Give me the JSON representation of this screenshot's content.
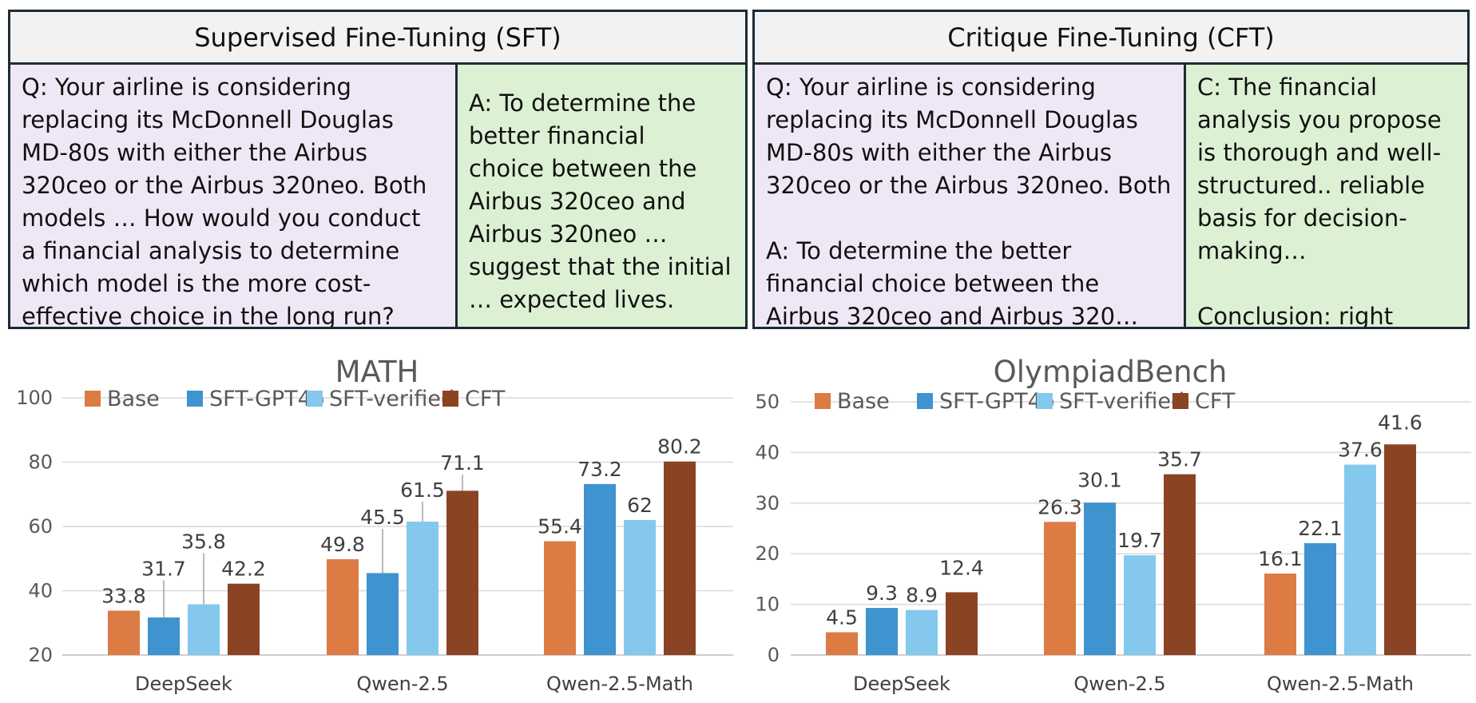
{
  "sft_panel": {
    "title": "Supervised Fine-Tuning (SFT)",
    "question_lines": [
      "Q: Your airline is considering",
      "replacing its McDonnell Douglas",
      "MD-80s with either the Airbus",
      "320ceo or the Airbus 320neo. Both",
      "models …  How would you conduct",
      "a financial analysis to determine",
      "which model is the more cost-",
      "effective choice in the long run?"
    ],
    "answer_lines": [
      "A: To determine the",
      "better financial",
      "choice between the",
      "Airbus 320ceo and",
      "Airbus 320neo …",
      "suggest that the initial",
      "… expected lives."
    ]
  },
  "cft_panel": {
    "title": "Critique Fine-Tuning (CFT)",
    "question_lines": [
      "Q: Your airline is considering",
      "replacing its McDonnell Douglas",
      "MD-80s with either the Airbus",
      "320ceo or the Airbus 320neo. Both"
    ],
    "answer_lines": [
      "A: To determine the better",
      "financial choice between the",
      "Airbus 320ceo and Airbus 320…"
    ],
    "critique_lines": [
      "C: The financial",
      "analysis you propose",
      "is thorough and well-",
      "structured.. reliable",
      "basis for decision-",
      "making…"
    ],
    "conclusion": "Conclusion: right"
  },
  "colors": {
    "Base": "#dd7b45",
    "SFT-GPT4o": "#3f93cf",
    "SFT-verified": "#84c8ee",
    "CFT": "#8b4423"
  },
  "chart_data": [
    {
      "type": "bar",
      "title": "MATH",
      "categories": [
        "DeepSeek",
        "Qwen-2.5",
        "Qwen-2.5-Math"
      ],
      "series": [
        {
          "name": "Base",
          "values": [
            33.8,
            49.8,
            55.4
          ]
        },
        {
          "name": "SFT-GPT4o",
          "values": [
            31.7,
            45.5,
            73.2
          ]
        },
        {
          "name": "SFT-verified",
          "values": [
            35.8,
            61.5,
            62
          ]
        },
        {
          "name": "CFT",
          "values": [
            42.2,
            71.1,
            80.2
          ]
        }
      ],
      "ylim": [
        20,
        100
      ],
      "yticks": [
        20,
        40,
        60,
        80,
        100
      ],
      "grid": true,
      "legend": "top"
    },
    {
      "type": "bar",
      "title": "OlympiadBench",
      "categories": [
        "DeepSeek",
        "Qwen-2.5",
        "Qwen-2.5-Math"
      ],
      "series": [
        {
          "name": "Base",
          "values": [
            4.5,
            26.3,
            16.1
          ]
        },
        {
          "name": "SFT-GPT4o",
          "values": [
            9.3,
            30.1,
            22.1
          ]
        },
        {
          "name": "SFT-verified",
          "values": [
            8.9,
            19.7,
            37.6
          ]
        },
        {
          "name": "CFT",
          "values": [
            12.4,
            35.7,
            41.6
          ]
        }
      ],
      "ylim": [
        0,
        50
      ],
      "yticks": [
        0,
        10,
        20,
        30,
        40,
        50
      ],
      "grid": true,
      "legend": "top"
    }
  ]
}
